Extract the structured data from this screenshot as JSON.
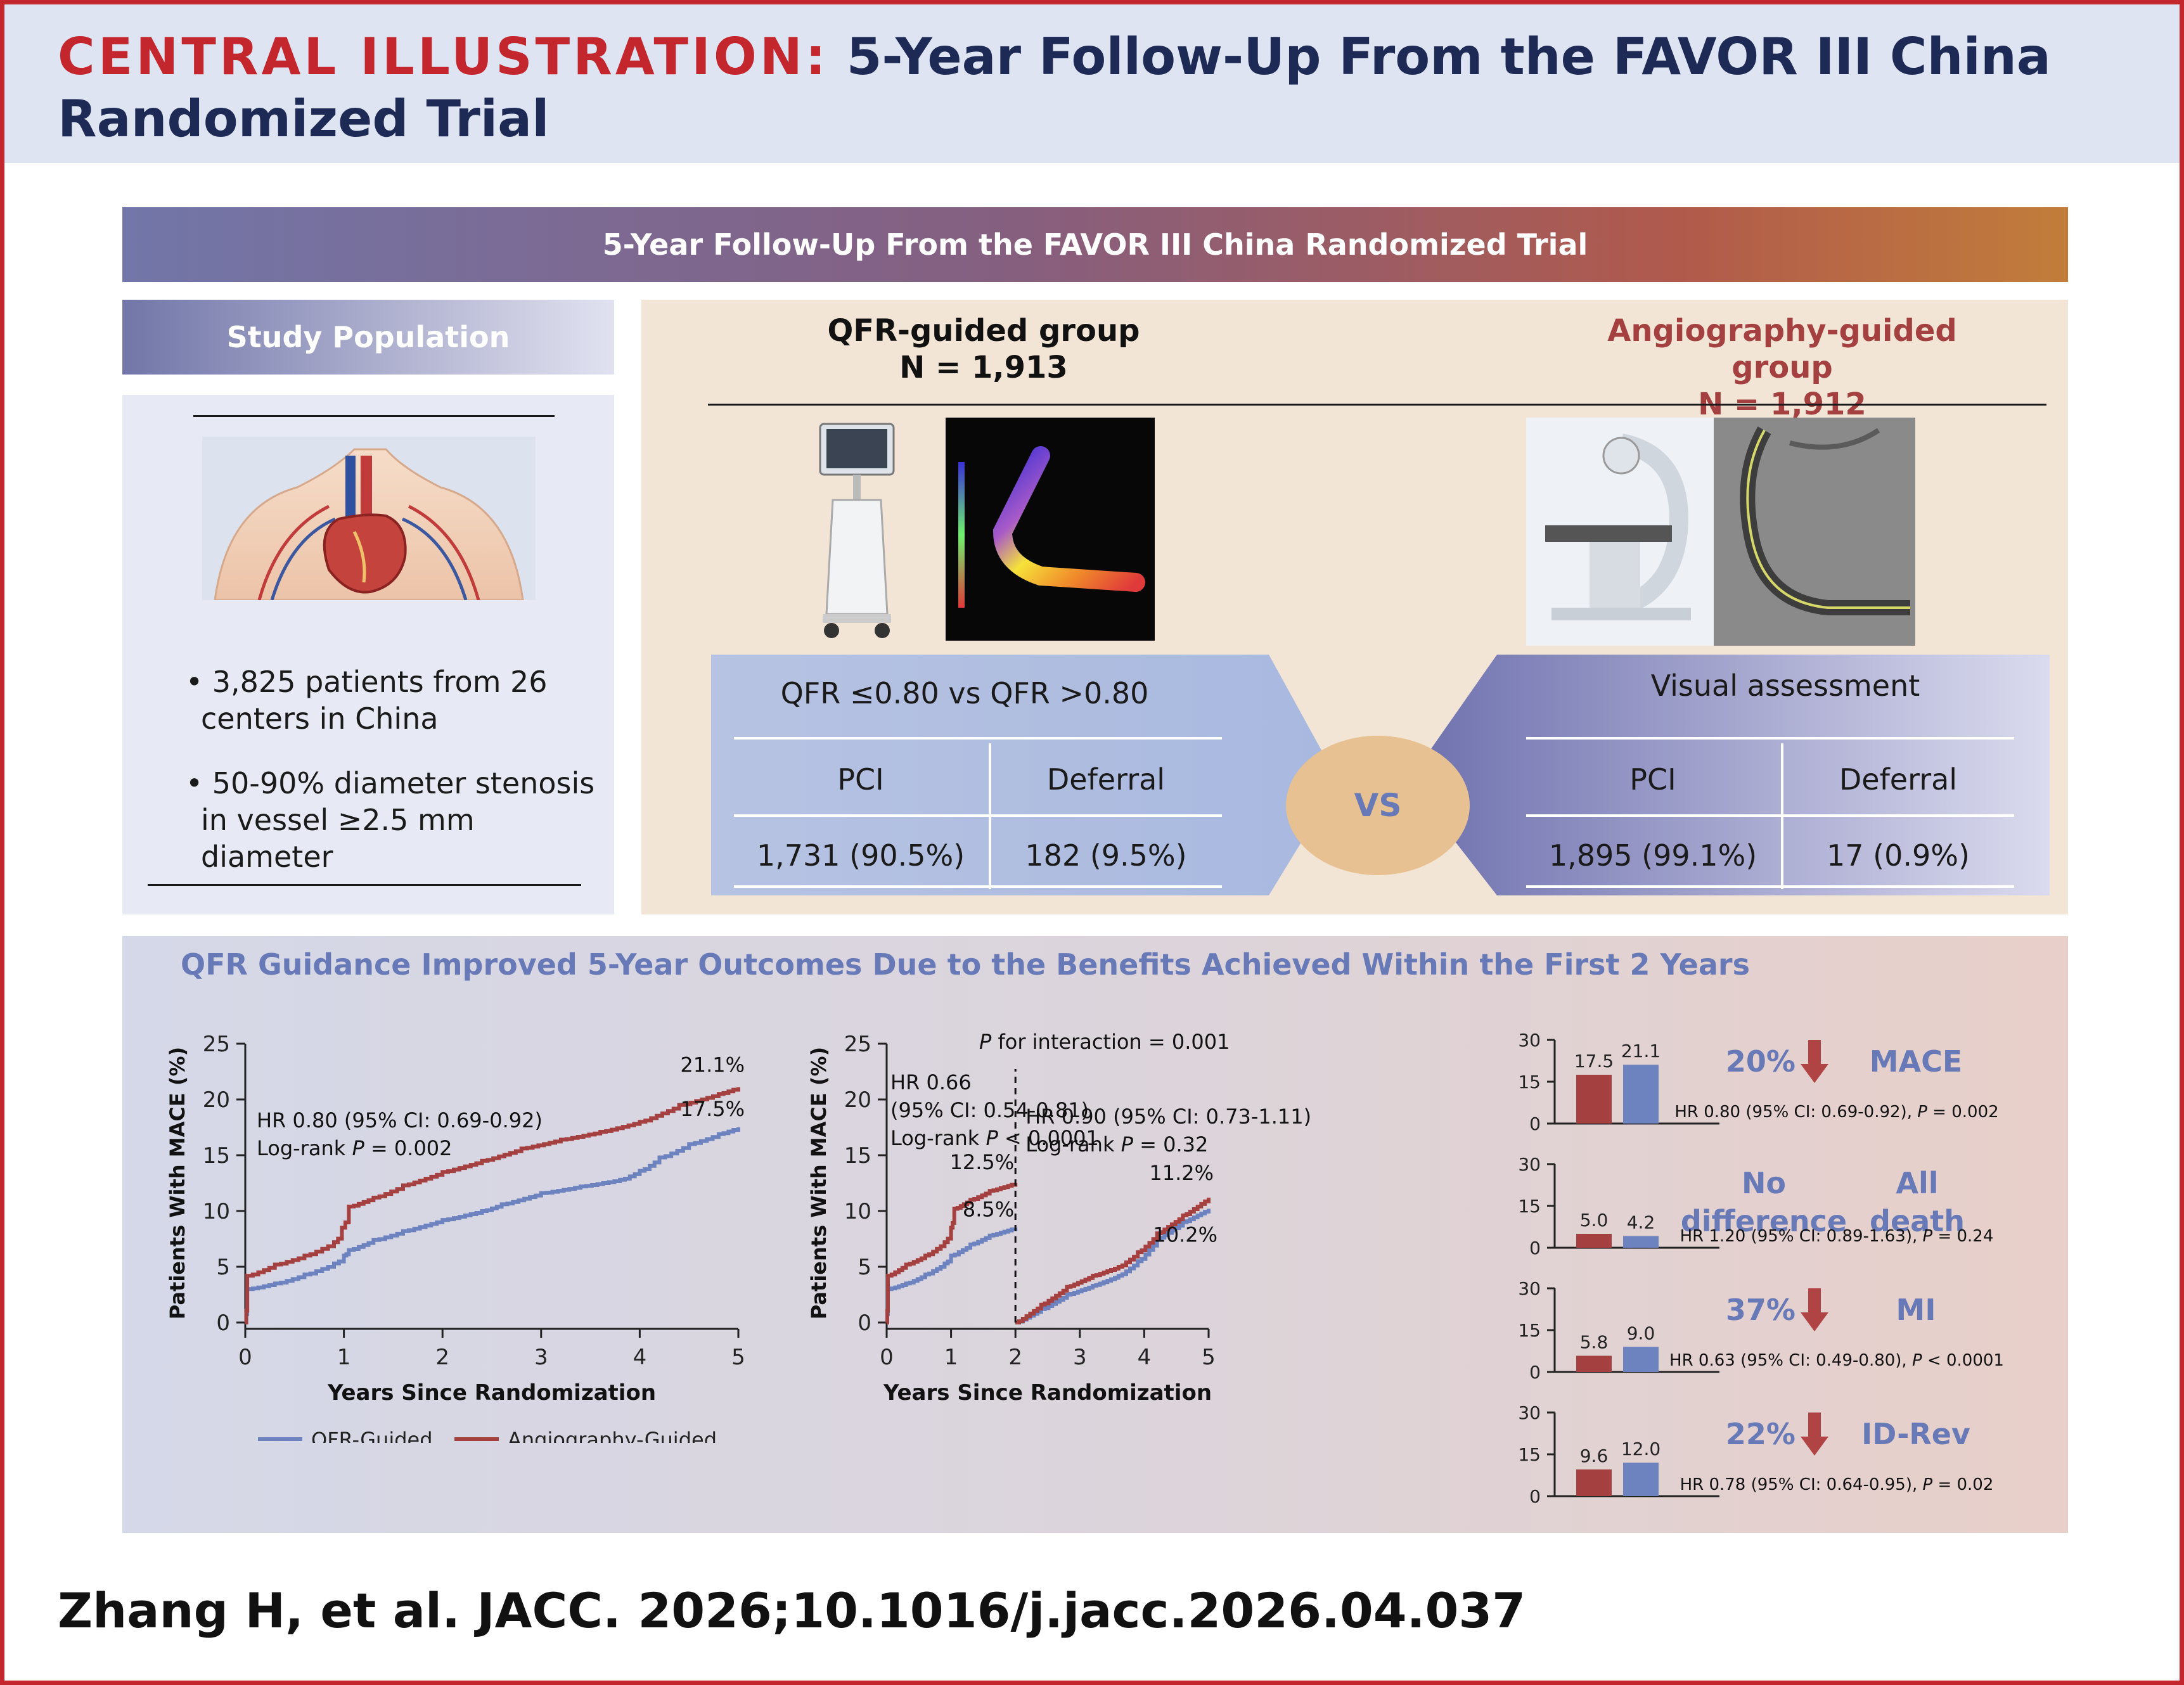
{
  "header": {
    "label": "CENTRAL ILLUSTRATION:",
    "title_line1": "5-Year Follow-Up From the FAVOR III China",
    "title_line2": "Randomized Trial"
  },
  "banner": {
    "title": "5-Year Follow-Up From the FAVOR III China Randomized Trial"
  },
  "study_population": {
    "title": "Study Population",
    "bullets": [
      {
        "line1": "3,825 patients from 26",
        "line2": "centers in China",
        "line3": ""
      },
      {
        "line1": "50-90% diameter stenosis",
        "line2": "in vessel ≥2.5 mm",
        "line3": "diameter"
      }
    ]
  },
  "groups": {
    "qfr": {
      "name": "QFR-guided group",
      "n": "N = 1,913",
      "criterion": "QFR ≤0.80 vs QFR >0.80",
      "col1": "PCI",
      "col2": "Deferral",
      "val1": "1,731 (90.5%)",
      "val2": "182 (9.5%)"
    },
    "angio": {
      "name": "Angiography-guided group",
      "n": "N = 1,912",
      "criterion": "Visual assessment",
      "col1": "PCI",
      "col2": "Deferral",
      "val1": "1,895 (99.1%)",
      "val2": "17 (0.9%)"
    },
    "vs": "VS"
  },
  "outcomes": {
    "title": "QFR Guidance Improved 5-Year Outcomes Due to the Benefits Achieved Within the First 2 Years"
  },
  "colors": {
    "qfr": "#6d83bf",
    "angio": "#a4403f",
    "accent_red": "#c4262e",
    "navy": "#1d2a55",
    "arrow": "#b04444",
    "label_blue": "#6779b6"
  },
  "chart_data": [
    {
      "type": "line",
      "ylabel": "Patients With MACE (%)",
      "xlabel": "Years Since Randomization",
      "xlim": [
        0,
        5
      ],
      "ylim": [
        0,
        25
      ],
      "xticks": [
        "0",
        "1",
        "2",
        "3",
        "4",
        "5"
      ],
      "yticks": [
        "0",
        "5",
        "10",
        "15",
        "20",
        "25"
      ],
      "annotations": {
        "hr": "HR 0.80 (95% CI: 0.69-0.92)",
        "logrank_pre": "Log-rank ",
        "logrank_p": "P",
        "logrank_post": " = 0.002"
      },
      "end_labels": {
        "angio": "21.1%",
        "qfr": "17.5%"
      },
      "series": [
        {
          "name": "QFR-Guided",
          "x": [
            0,
            0.02,
            0.3,
            0.6,
            0.9,
            1.0,
            1.05,
            1.3,
            1.6,
            2.0,
            2.4,
            2.6,
            3.0,
            3.4,
            3.8,
            4.0,
            4.2,
            4.5,
            4.8,
            5.0
          ],
          "y": [
            0,
            3.0,
            3.5,
            4.3,
            5.3,
            6.0,
            6.5,
            7.4,
            8.2,
            9.2,
            10.0,
            10.6,
            11.6,
            12.2,
            12.8,
            13.6,
            14.8,
            16.0,
            16.9,
            17.5
          ]
        },
        {
          "name": "Angiography-Guided",
          "x": [
            0,
            0.02,
            0.3,
            0.6,
            0.9,
            0.98,
            1.05,
            1.3,
            1.6,
            2.0,
            2.4,
            2.8,
            3.2,
            3.6,
            4.0,
            4.4,
            4.8,
            5.0
          ],
          "y": [
            0,
            4.2,
            5.2,
            6.0,
            7.2,
            8.5,
            10.4,
            11.2,
            12.3,
            13.5,
            14.5,
            15.6,
            16.4,
            17.1,
            18.0,
            19.5,
            20.5,
            21.1
          ]
        }
      ]
    },
    {
      "type": "line",
      "ylabel": "Patients With MACE (%)",
      "xlabel": "Years Since Randomization",
      "xlim": [
        0,
        5
      ],
      "ylim": [
        0,
        25
      ],
      "xticks": [
        "0",
        "1",
        "2",
        "3",
        "4",
        "5"
      ],
      "yticks": [
        "0",
        "5",
        "10",
        "15",
        "20",
        "25"
      ],
      "interaction": {
        "p": "P",
        "text": " for interaction = 0.001"
      },
      "left_annotation": {
        "line1": "HR 0.66",
        "line2": "(95% CI: 0.54-0.81)",
        "logrank_pre": "Log-rank ",
        "logrank_p": "P",
        "logrank_post": " < 0.0001"
      },
      "right_annotation": {
        "line1": "HR 0.90 (95% CI: 0.73-1.11)",
        "logrank_pre": "Log-rank ",
        "logrank_p": "P",
        "logrank_post": " = 0.32"
      },
      "end_labels": {
        "angio_2y": "12.5%",
        "qfr_2y": "8.5%",
        "angio_5y": "11.2%",
        "qfr_5y": "10.2%"
      },
      "landmark_x": 2,
      "series": [
        {
          "name": "QFR-Guided",
          "segment": "0-2",
          "x": [
            0,
            0.02,
            0.3,
            0.6,
            0.9,
            1.0,
            1.3,
            1.6,
            2.0
          ],
          "y": [
            0,
            3.0,
            3.5,
            4.3,
            5.3,
            6.0,
            7.0,
            7.8,
            8.5
          ]
        },
        {
          "name": "Angiography-Guided",
          "segment": "0-2",
          "x": [
            0,
            0.02,
            0.3,
            0.6,
            0.9,
            1.0,
            1.05,
            1.3,
            1.6,
            2.0
          ],
          "y": [
            0,
            4.2,
            5.2,
            6.0,
            7.2,
            8.5,
            10.2,
            11.0,
            11.8,
            12.5
          ]
        },
        {
          "name": "QFR-Guided",
          "segment": "2-5",
          "x": [
            2.0,
            2.4,
            2.8,
            3.2,
            3.6,
            3.9,
            4.2,
            4.6,
            5.0
          ],
          "y": [
            0,
            1.2,
            2.5,
            3.3,
            4.2,
            5.5,
            7.5,
            9.0,
            10.2
          ]
        },
        {
          "name": "Angiography-Guided",
          "segment": "2-5",
          "x": [
            2.0,
            2.4,
            2.8,
            3.2,
            3.6,
            3.9,
            4.2,
            4.6,
            5.0
          ],
          "y": [
            0,
            1.6,
            3.2,
            4.2,
            5.0,
            6.3,
            8.0,
            9.6,
            11.2
          ]
        }
      ]
    },
    {
      "type": "bar",
      "categories": [
        "QFR-Guided",
        "Angiography-Guided"
      ],
      "yticks": [
        "0",
        "15",
        "30"
      ],
      "ylim": [
        0,
        30
      ],
      "panels": [
        {
          "label": "MACE",
          "reduction": "20%",
          "values": [
            17.5,
            21.1
          ],
          "value_labels": [
            "17.5",
            "21.1"
          ],
          "hr_pre": "HR 0.80 (95% CI: 0.69-0.92), ",
          "hr_p": "P",
          "hr_post": " = 0.002"
        },
        {
          "label": "All death",
          "label_line1": "All",
          "label_line2": "death",
          "reduction_line1": "No",
          "reduction_line2": "difference",
          "values": [
            5.0,
            4.2
          ],
          "value_labels": [
            "5.0",
            "4.2"
          ],
          "hr_pre": "HR 1.20 (95% CI: 0.89-1.63), ",
          "hr_p": "P",
          "hr_post": " = 0.24"
        },
        {
          "label": "MI",
          "reduction": "37%",
          "values": [
            5.8,
            9.0
          ],
          "value_labels": [
            "5.8",
            "9.0"
          ],
          "hr_pre": "HR 0.63 (95% CI: 0.49-0.80), ",
          "hr_p": "P",
          "hr_post": " < 0.0001"
        },
        {
          "label": "ID-Rev",
          "reduction": "22%",
          "values": [
            9.6,
            12.0
          ],
          "value_labels": [
            "9.6",
            "12.0"
          ],
          "hr_pre": "HR 0.78 (95% CI: 0.64-0.95), ",
          "hr_p": "P",
          "hr_post": " = 0.02"
        }
      ]
    }
  ],
  "footer": {
    "citation": "Zhang H, et al. JACC. 2026;10.1016/j.jacc.2026.04.037"
  }
}
